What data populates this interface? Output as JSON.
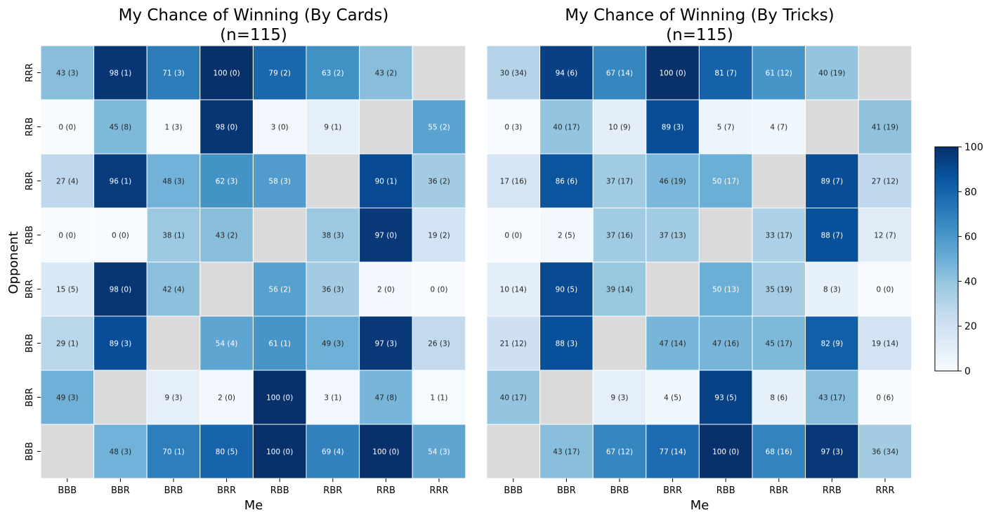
{
  "chart_data": [
    {
      "type": "heatmap",
      "title": "My Chance of Winning (By Cards)",
      "subtitle": "(n=115)",
      "xlabel": "Me",
      "ylabel": "Opponent",
      "x_categories": [
        "BBB",
        "BBR",
        "BRB",
        "BRR",
        "RBB",
        "RBR",
        "RRB",
        "RRR"
      ],
      "y_categories": [
        "RRR",
        "RRB",
        "RBR",
        "RBB",
        "BRR",
        "BRB",
        "BBR",
        "BBB"
      ],
      "values": [
        [
          43,
          98,
          71,
          100,
          79,
          63,
          43,
          null
        ],
        [
          0,
          45,
          1,
          98,
          3,
          9,
          null,
          55
        ],
        [
          27,
          96,
          48,
          62,
          58,
          null,
          90,
          36
        ],
        [
          0,
          0,
          38,
          43,
          null,
          38,
          97,
          19
        ],
        [
          15,
          98,
          42,
          null,
          56,
          36,
          2,
          0
        ],
        [
          29,
          89,
          null,
          54,
          61,
          49,
          97,
          26
        ],
        [
          49,
          null,
          9,
          2,
          100,
          3,
          47,
          1
        ],
        [
          null,
          48,
          70,
          80,
          100,
          69,
          100,
          54
        ]
      ],
      "annotations": [
        [
          "43 (3)",
          "98 (1)",
          "71 (3)",
          "100 (0)",
          "79 (2)",
          "63 (2)",
          "43 (2)",
          ""
        ],
        [
          "0 (0)",
          "45 (8)",
          "1 (3)",
          "98 (0)",
          "3 (0)",
          "9 (1)",
          "",
          "55 (2)"
        ],
        [
          "27 (4)",
          "96 (1)",
          "48 (3)",
          "62 (3)",
          "58 (3)",
          "",
          "90 (1)",
          "36 (2)"
        ],
        [
          "0 (0)",
          "0 (0)",
          "38 (1)",
          "43 (2)",
          "",
          "38 (3)",
          "97 (0)",
          "19 (2)"
        ],
        [
          "15 (5)",
          "98 (0)",
          "42 (4)",
          "",
          "56 (2)",
          "36 (3)",
          "2 (0)",
          "0 (0)"
        ],
        [
          "29 (1)",
          "89 (3)",
          "",
          "54 (4)",
          "61 (1)",
          "49 (3)",
          "97 (3)",
          "26 (3)"
        ],
        [
          "49 (3)",
          "",
          "9 (3)",
          "2 (0)",
          "100 (0)",
          "3 (1)",
          "47 (8)",
          "1 (1)"
        ],
        [
          "",
          "48 (3)",
          "70 (1)",
          "80 (5)",
          "100 (0)",
          "69 (4)",
          "100 (0)",
          "54 (3)"
        ]
      ]
    },
    {
      "type": "heatmap",
      "title": "My Chance of Winning (By Tricks)",
      "subtitle": "(n=115)",
      "xlabel": "Me",
      "ylabel": "",
      "x_categories": [
        "BBB",
        "BBR",
        "BRB",
        "BRR",
        "RBB",
        "RBR",
        "RRB",
        "RRR"
      ],
      "y_categories": [
        "RRR",
        "RRB",
        "RBR",
        "RBB",
        "BRR",
        "BRB",
        "BBR",
        "BBB"
      ],
      "values": [
        [
          30,
          94,
          67,
          100,
          81,
          61,
          40,
          null
        ],
        [
          0,
          40,
          10,
          89,
          5,
          4,
          null,
          41
        ],
        [
          17,
          86,
          37,
          46,
          50,
          null,
          89,
          27
        ],
        [
          0,
          2,
          37,
          37,
          null,
          33,
          88,
          12
        ],
        [
          10,
          90,
          39,
          null,
          50,
          35,
          8,
          0
        ],
        [
          21,
          88,
          null,
          47,
          47,
          45,
          82,
          19
        ],
        [
          40,
          null,
          9,
          4,
          93,
          8,
          43,
          0
        ],
        [
          null,
          43,
          67,
          77,
          100,
          68,
          97,
          36
        ]
      ],
      "annotations": [
        [
          "30 (34)",
          "94 (6)",
          "67 (14)",
          "100 (0)",
          "81 (7)",
          "61 (12)",
          "40 (19)",
          ""
        ],
        [
          "0 (3)",
          "40 (17)",
          "10 (9)",
          "89 (3)",
          "5 (7)",
          "4 (7)",
          "",
          "41 (19)"
        ],
        [
          "17 (16)",
          "86 (6)",
          "37 (17)",
          "46 (19)",
          "50 (17)",
          "",
          "89 (7)",
          "27 (12)"
        ],
        [
          "0 (0)",
          "2 (5)",
          "37 (16)",
          "37 (13)",
          "",
          "33 (17)",
          "88 (7)",
          "12 (7)"
        ],
        [
          "10 (14)",
          "90 (5)",
          "39 (14)",
          "",
          "50 (13)",
          "35 (19)",
          "8 (3)",
          "0 (0)"
        ],
        [
          "21 (12)",
          "88 (3)",
          "",
          "47 (14)",
          "47 (16)",
          "45 (17)",
          "82 (9)",
          "19 (14)"
        ],
        [
          "40 (17)",
          "",
          "9 (3)",
          "4 (5)",
          "93 (5)",
          "8 (6)",
          "43 (17)",
          "0 (6)"
        ],
        [
          "",
          "43 (17)",
          "67 (12)",
          "77 (14)",
          "100 (0)",
          "68 (16)",
          "97 (3)",
          "36 (34)"
        ]
      ]
    }
  ],
  "colorbar": {
    "ticks": [
      0,
      20,
      40,
      60,
      80,
      100
    ],
    "range": [
      0,
      100
    ],
    "colormap": "Blues"
  },
  "colors": {
    "missing_cell": "#dadada",
    "cell_border": "#ffffff",
    "text_dark": "#262626",
    "text_light": "#ffffff"
  }
}
